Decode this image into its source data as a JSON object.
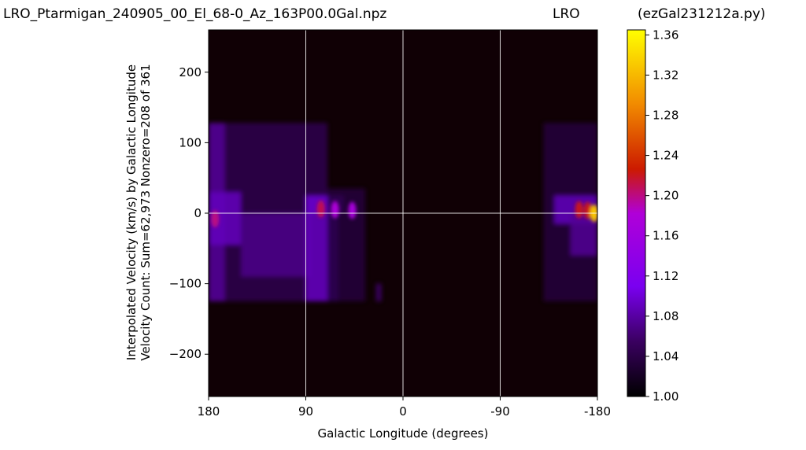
{
  "title": {
    "left": "LRO_Ptarmigan_240905_00_El_68-0_Az_163P00.0Gal.npz",
    "center": "LRO",
    "right": "(ezGal231212a.py)"
  },
  "chart_data": {
    "type": "heatmap",
    "xlabel": "Galactic Longitude (degrees)",
    "ylabel_lines": [
      "Interpolated Velocity (km/s) by Galactic Longitude",
      "Velocity Count: Sum=62,973 Nonzero=208 of 361"
    ],
    "xlim": [
      180,
      -180
    ],
    "ylim": [
      -260,
      260
    ],
    "x_ticks": [
      {
        "value": 180,
        "label": "180"
      },
      {
        "value": 90,
        "label": "90"
      },
      {
        "value": 0,
        "label": "0"
      },
      {
        "value": -90,
        "label": "-90"
      },
      {
        "value": -180,
        "label": "-180"
      }
    ],
    "y_ticks": [
      {
        "value": 200,
        "label": "200"
      },
      {
        "value": 100,
        "label": "100"
      },
      {
        "value": 0,
        "label": "0"
      },
      {
        "value": -100,
        "label": "−100"
      },
      {
        "value": -200,
        "label": "−200"
      }
    ],
    "grid": true,
    "colormap": "gnuplot",
    "colorbar": {
      "min": 1.0,
      "max": 1.365,
      "ticks": [
        {
          "value": 1.0,
          "label": "1.00"
        },
        {
          "value": 1.04,
          "label": "1.04"
        },
        {
          "value": 1.08,
          "label": "1.08"
        },
        {
          "value": 1.12,
          "label": "1.12"
        },
        {
          "value": 1.16,
          "label": "1.16"
        },
        {
          "value": 1.2,
          "label": "1.20"
        },
        {
          "value": 1.24,
          "label": "1.24"
        },
        {
          "value": 1.28,
          "label": "1.28"
        },
        {
          "value": 1.32,
          "label": "1.32"
        },
        {
          "value": 1.36,
          "label": "1.36"
        }
      ]
    },
    "regions": [
      {
        "lon": [
          180,
          70
        ],
        "vel": [
          -125,
          128
        ],
        "level": 1.045
      },
      {
        "lon": [
          180,
          165
        ],
        "vel": [
          -125,
          128
        ],
        "level": 1.075
      },
      {
        "lon": [
          180,
          150
        ],
        "vel": [
          -45,
          30
        ],
        "level": 1.09
      },
      {
        "lon": [
          150,
          85
        ],
        "vel": [
          -90,
          0
        ],
        "level": 1.07
      },
      {
        "lon": [
          90,
          60
        ],
        "vel": [
          -125,
          0
        ],
        "level": 1.09
      },
      {
        "lon": [
          90,
          55
        ],
        "vel": [
          0,
          25
        ],
        "level": 1.1
      },
      {
        "lon": [
          70,
          35
        ],
        "vel": [
          -125,
          35
        ],
        "level": 1.035
      },
      {
        "lon": [
          25,
          20
        ],
        "vel": [
          -125,
          -100
        ],
        "level": 1.06
      },
      {
        "lon": [
          -130,
          -180
        ],
        "vel": [
          -125,
          128
        ],
        "level": 1.035
      },
      {
        "lon": [
          -140,
          -180
        ],
        "vel": [
          -15,
          25
        ],
        "level": 1.09
      },
      {
        "lon": [
          -155,
          -180
        ],
        "vel": [
          -60,
          0
        ],
        "level": 1.075
      }
    ],
    "hot_spots": [
      {
        "lon": 174,
        "vel": -8,
        "level": 1.2
      },
      {
        "lon": 76,
        "vel": 6,
        "level": 1.21
      },
      {
        "lon": 63,
        "vel": 5,
        "level": 1.18
      },
      {
        "lon": 47,
        "vel": 4,
        "level": 1.17
      },
      {
        "lon": -163,
        "vel": 5,
        "level": 1.22
      },
      {
        "lon": -171,
        "vel": 4,
        "level": 1.22
      },
      {
        "lon": -177,
        "vel": 0,
        "level": 1.33
      }
    ]
  }
}
